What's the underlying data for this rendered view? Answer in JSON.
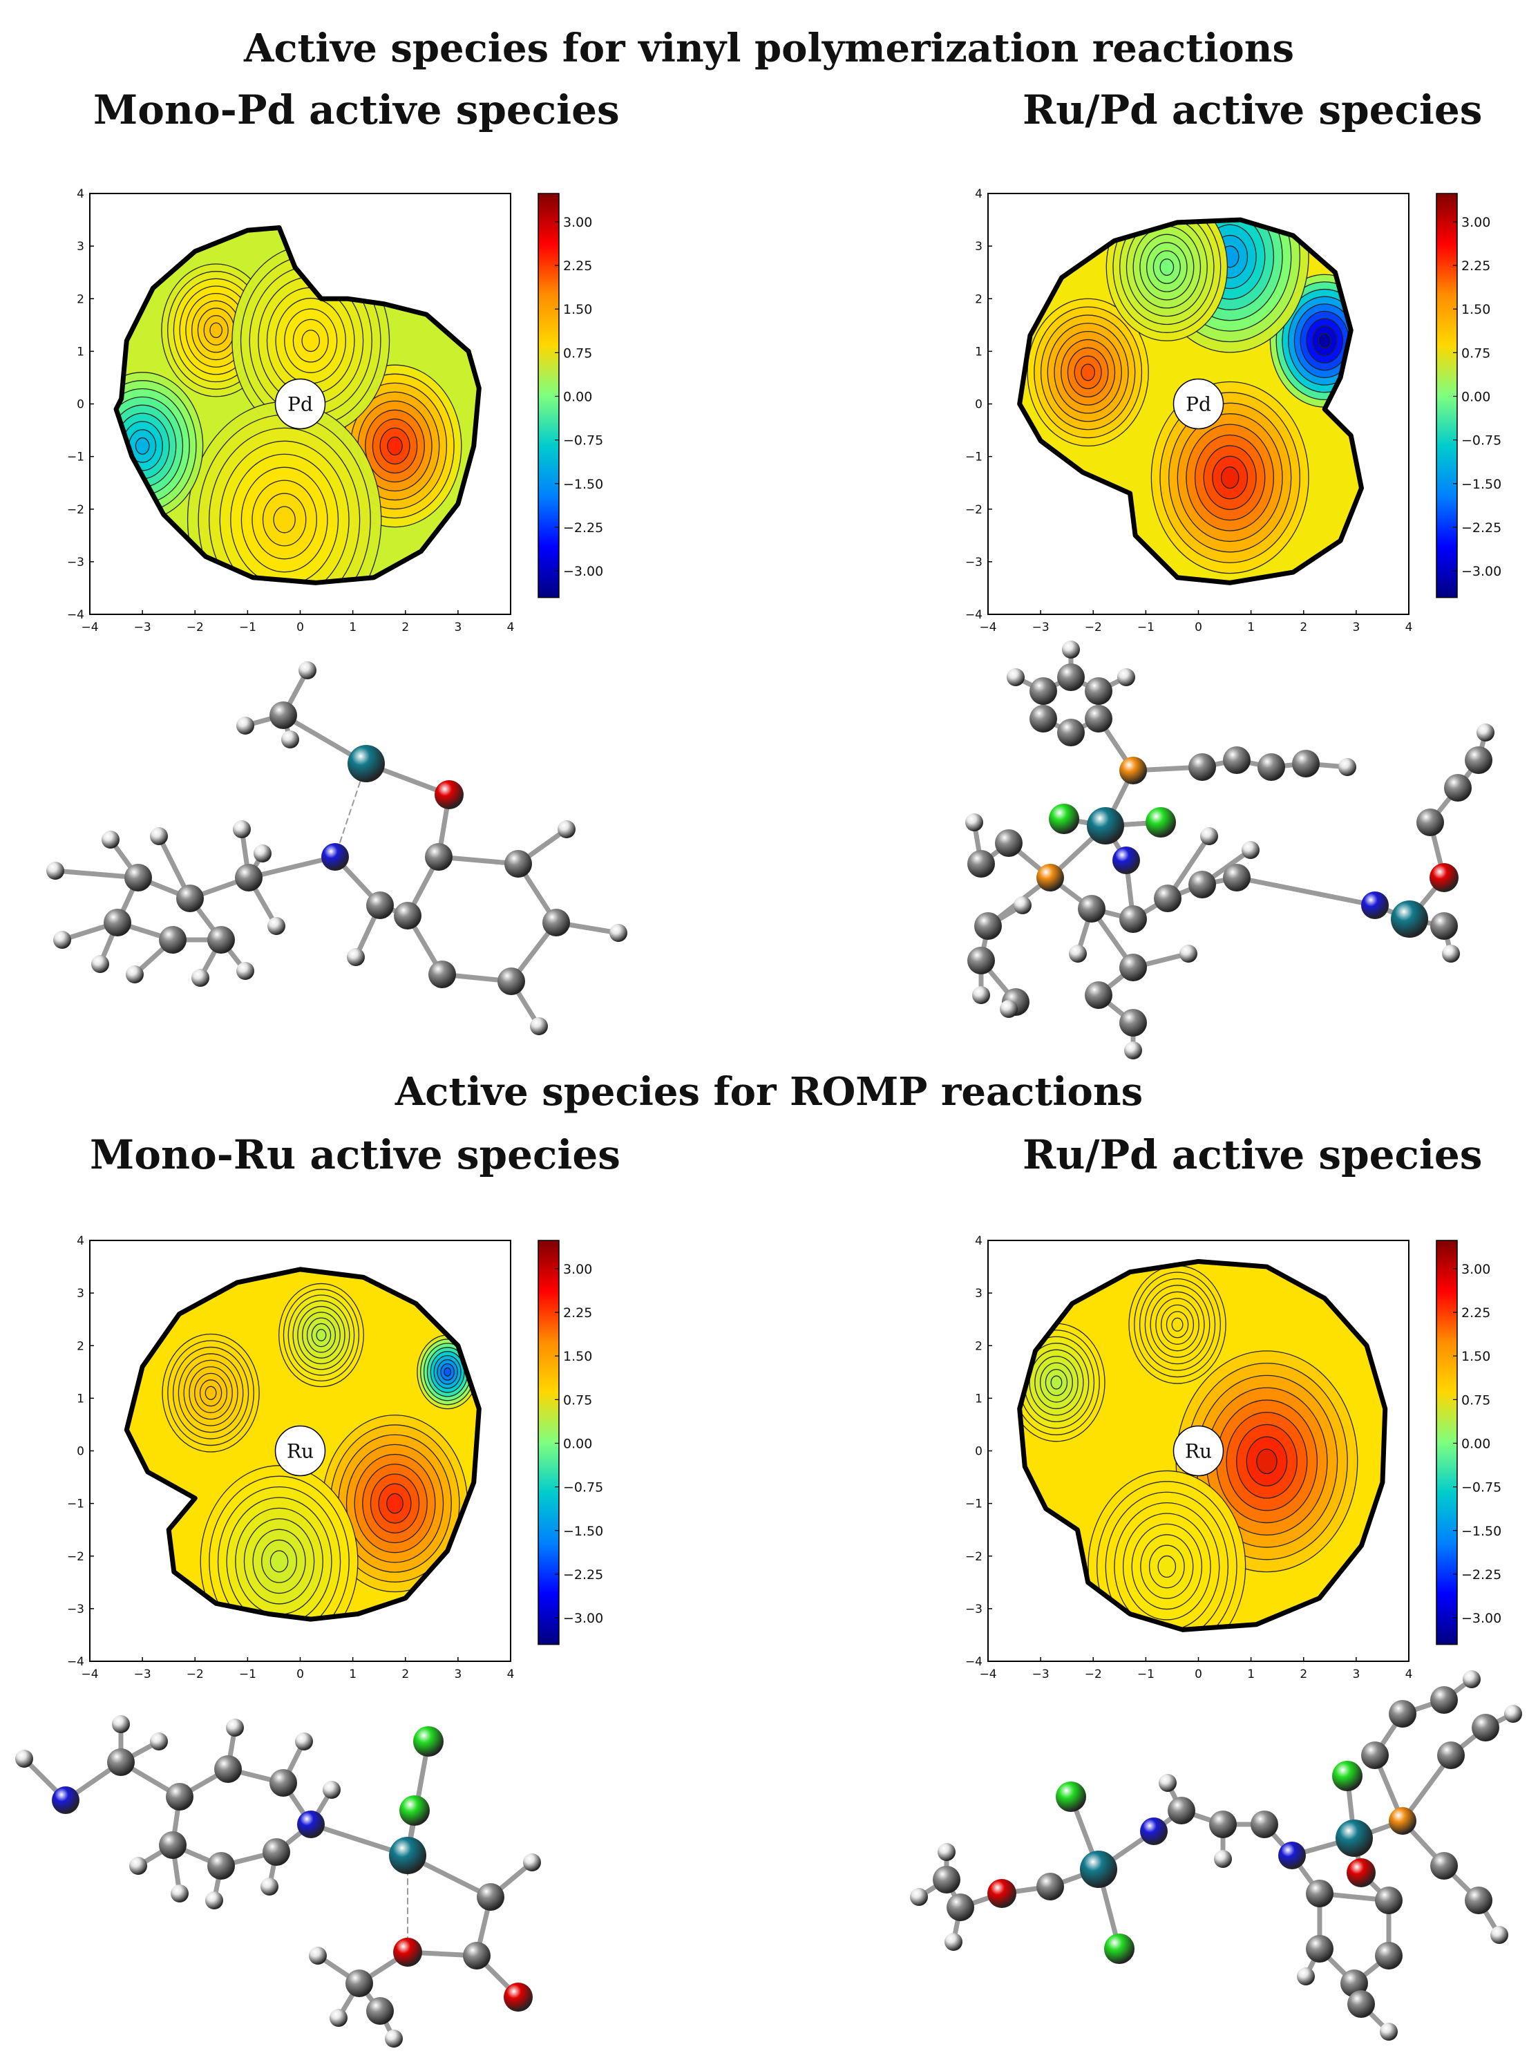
{
  "sections": [
    {
      "title": "Active species for vinyl polymerization reactions"
    },
    {
      "title": "Active species for ROMP reactions"
    }
  ],
  "panels": [
    {
      "title": "Mono-Pd active species",
      "metal": "Pd"
    },
    {
      "title": "Ru/Pd active species",
      "metal": "Pd"
    },
    {
      "title": "Mono-Ru active species",
      "metal": "Ru"
    },
    {
      "title": "Ru/Pd active species",
      "metal": "Ru"
    }
  ],
  "axes": {
    "x_ticks": [
      "−4",
      "−3",
      "−2",
      "−1",
      "0",
      "1",
      "2",
      "3",
      "4"
    ],
    "y_ticks": [
      "4",
      "3",
      "2",
      "1",
      "0",
      "−1",
      "−2",
      "−3",
      "−4"
    ]
  },
  "colorbar": {
    "labels": [
      "3.00",
      "2.25",
      "1.50",
      "0.75",
      "0.00",
      "−0.75",
      "−1.50",
      "−2.25",
      "−3.00"
    ],
    "colors": [
      "#800000",
      "#ff0000",
      "#ff8c00",
      "#ffd700",
      "#7fff7f",
      "#00cccc",
      "#0080ff",
      "#0000ff",
      "#000080"
    ]
  },
  "atom_colors": {
    "carbon": "#8c8c8c",
    "hydrogen": "#e6e6e6",
    "nitrogen": "#1a1ad6",
    "oxygen": "#e00000",
    "chlorine": "#22dd22",
    "metal": "#127a8c",
    "phosphorus": "#f08c10"
  }
}
